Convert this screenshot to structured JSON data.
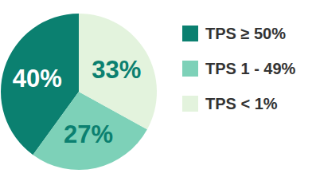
{
  "chart_data": {
    "type": "pie",
    "categories": [
      "TPS ≥ 50%",
      "TPS 1 - 49%",
      "TPS < 1%"
    ],
    "values": [
      40,
      27,
      33
    ],
    "value_labels": [
      "40%",
      "27%",
      "33%"
    ],
    "colors": [
      "#0b8070",
      "#7dd1b8",
      "#e3f3dd"
    ],
    "data_labels": true,
    "legend": "right"
  }
}
